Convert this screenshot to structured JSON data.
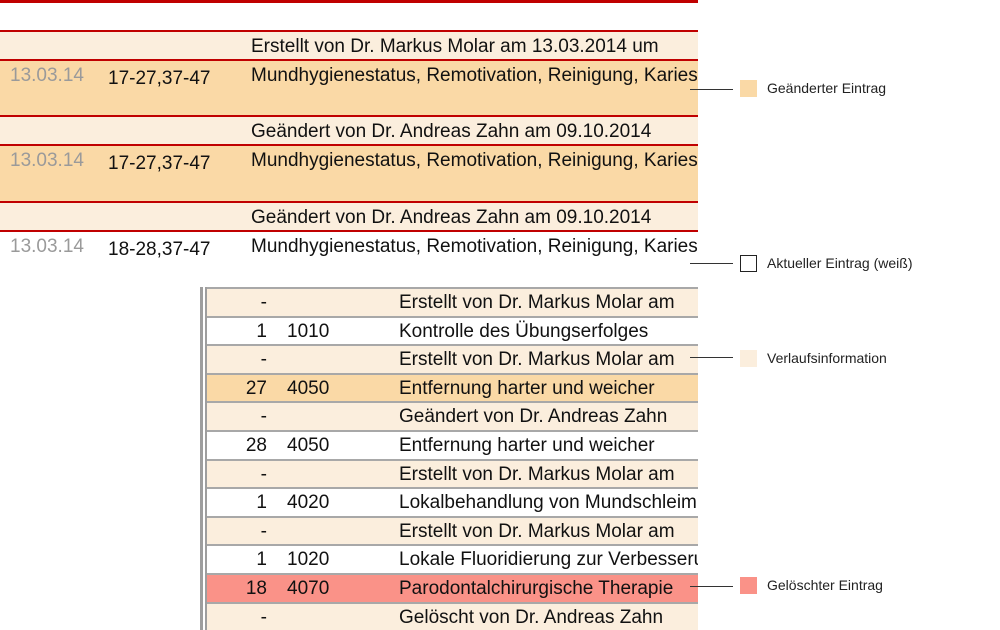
{
  "main_rows": [
    {
      "type": "history",
      "date": "",
      "teeth": "",
      "description": "Erstellt von Dr. Markus Molar am 13.03.2014 um"
    },
    {
      "type": "changed",
      "date": "13.03.14",
      "teeth": "17-27,37-47",
      "description": "Mundhygienestatus, Remotivation, Reinigung, Kariesrisikobestimmung"
    },
    {
      "type": "history",
      "date": "",
      "teeth": "",
      "description": "Geändert von Dr. Andreas Zahn am 09.10.2014"
    },
    {
      "type": "changed",
      "date": "13.03.14",
      "teeth": "17-27,37-47",
      "description": "Mundhygienestatus, Remotivation, Reinigung, Kariesrisikobestimmung"
    },
    {
      "type": "history",
      "date": "",
      "teeth": "",
      "description": "Geändert von Dr. Andreas Zahn am 09.10.2014"
    },
    {
      "type": "current",
      "date": "13.03.14",
      "teeth": "18-28,37-47",
      "description": "Mundhygienestatus, Remotivation, Reinigung, Kariesrisikobestimmung"
    }
  ],
  "sub_rows": [
    {
      "type": "history",
      "qty": "-",
      "code": "",
      "text": "Erstellt von Dr. Markus Molar am"
    },
    {
      "type": "current",
      "qty": "1",
      "code": "1010",
      "text": "Kontrolle des Übungserfolges"
    },
    {
      "type": "history",
      "qty": "-",
      "code": "",
      "text": "Erstellt von Dr. Markus Molar am"
    },
    {
      "type": "changed",
      "qty": "27",
      "code": "4050",
      "text": "Entfernung harter und weicher"
    },
    {
      "type": "history",
      "qty": "-",
      "code": "",
      "text": "Geändert von Dr. Andreas Zahn"
    },
    {
      "type": "current",
      "qty": "28",
      "code": "4050",
      "text": "Entfernung harter und weicher"
    },
    {
      "type": "history",
      "qty": "-",
      "code": "",
      "text": "Erstellt von Dr. Markus Molar am"
    },
    {
      "type": "current",
      "qty": "1",
      "code": "4020",
      "text": "Lokalbehandlung von Mundschleimhaut"
    },
    {
      "type": "history",
      "qty": "-",
      "code": "",
      "text": "Erstellt von Dr. Markus Molar am"
    },
    {
      "type": "current",
      "qty": "1",
      "code": "1020",
      "text": "Lokale Fluoridierung zur Verbesserung"
    },
    {
      "type": "deleted",
      "qty": "18",
      "code": "4070",
      "text": "Parodontalchirurgische Therapie"
    },
    {
      "type": "history",
      "qty": "-",
      "code": "",
      "text": "Gelöscht von Dr. Andreas Zahn"
    }
  ],
  "legend": {
    "changed": {
      "label": "Geänderter Eintrag",
      "color": "#fad9a6"
    },
    "current": {
      "label": "Aktueller Eintrag (weiß)",
      "color": "#ffffff"
    },
    "history": {
      "label": "Verlaufsinformation",
      "color": "#fbeedd"
    },
    "deleted": {
      "label": "Gelöschter Eintrag",
      "color": "#fa9288"
    }
  }
}
